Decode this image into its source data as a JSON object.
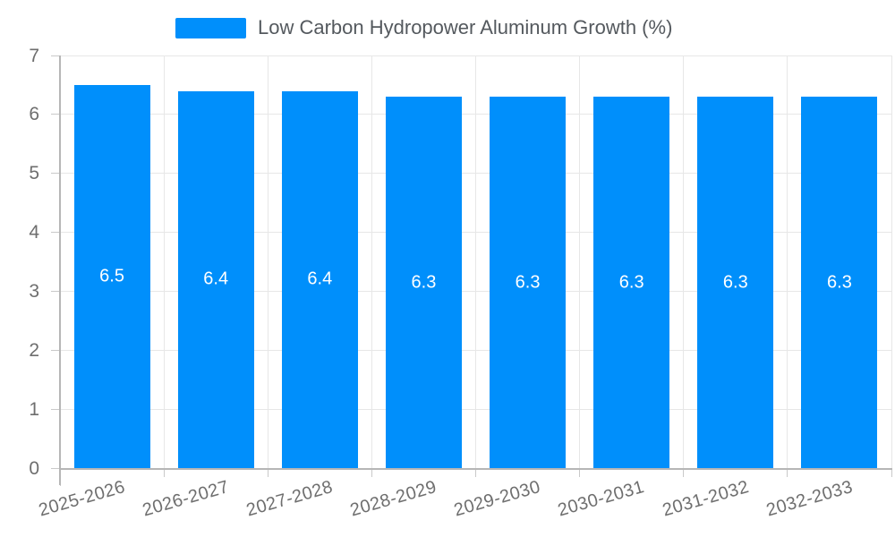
{
  "legend": {
    "label": "Low Carbon Hydropower Aluminum Growth (%)",
    "swatch_color": "#008FFB"
  },
  "chart_data": {
    "type": "bar",
    "title": "",
    "xlabel": "",
    "ylabel": "",
    "series_name": "Low Carbon Hydropower Aluminum Growth (%)",
    "categories": [
      "2025-2026",
      "2026-2027",
      "2027-2028",
      "2028-2029",
      "2029-2030",
      "2030-2031",
      "2031-2032",
      "2032-2033"
    ],
    "values": [
      6.5,
      6.4,
      6.4,
      6.3,
      6.3,
      6.3,
      6.3,
      6.3
    ],
    "data_labels": [
      "6.5",
      "6.4",
      "6.4",
      "6.3",
      "6.3",
      "6.3",
      "6.3",
      "6.3"
    ],
    "ylim": [
      0,
      7
    ],
    "yticks": [
      0,
      1,
      2,
      3,
      4,
      5,
      6,
      7
    ],
    "grid": true,
    "legend_position": "top",
    "bar_color": "#008FFB",
    "data_label_color": "#ffffff",
    "axis_label_color": "#6e6e6e",
    "grid_color": "#e7e7e7",
    "axis_line_color": "#b6b6b6"
  }
}
